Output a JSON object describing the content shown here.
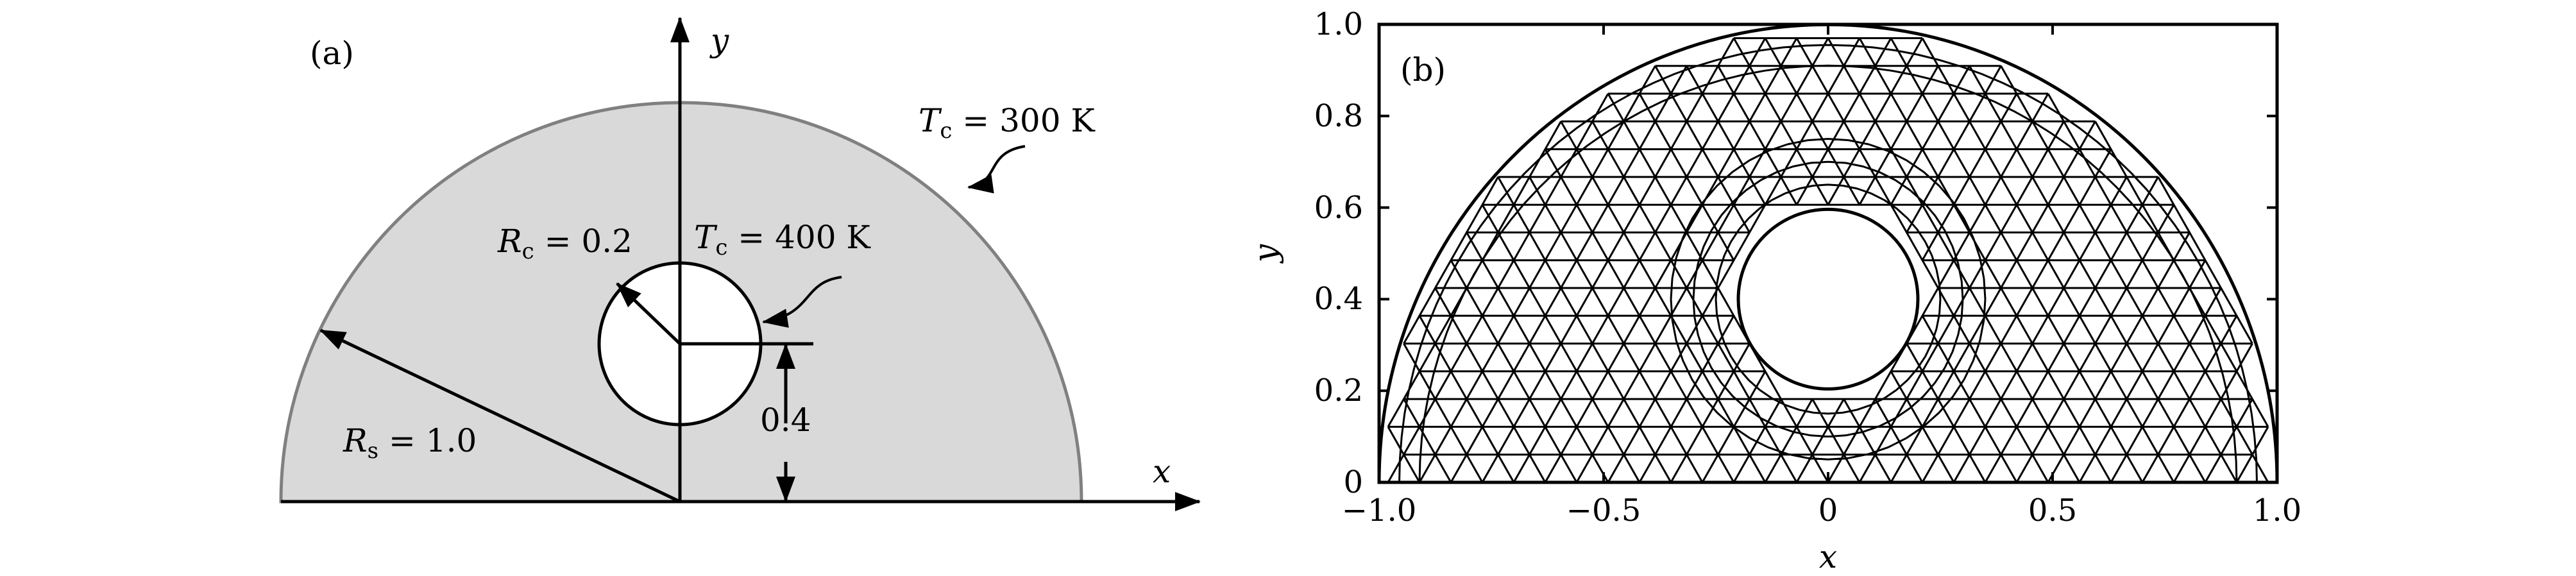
{
  "panel_a": {
    "label": "(a)",
    "axis_x": "x",
    "axis_y": "y",
    "outer_temp": {
      "symbol": "T",
      "sub": "c",
      "text": " = 300 K"
    },
    "inner_temp": {
      "symbol": "T",
      "sub": "c",
      "text": " = 400 K"
    },
    "inner_radius": {
      "symbol": "R",
      "sub": "c",
      "text": " = 0.2"
    },
    "outer_radius": {
      "symbol": "R",
      "sub": "s",
      "text": " = 1.0"
    },
    "offset": "0.4",
    "colors": {
      "fill": "#d9d9d9",
      "outline": "#808080",
      "hole": "#ffffff"
    }
  },
  "panel_b": {
    "label": "(b)",
    "xlabel": "x",
    "ylabel": "y",
    "xlim": [
      -1.0,
      1.0
    ],
    "ylim": [
      0.0,
      1.0
    ],
    "xticks": [
      "−1.0",
      "−0.5",
      "0",
      "0.5",
      "1.0"
    ],
    "xtick_values": [
      -1.0,
      -0.5,
      0,
      0.5,
      1.0
    ],
    "yticks": [
      "0",
      "0.2",
      "0.4",
      "0.6",
      "0.8",
      "1.0"
    ],
    "ytick_values": [
      0,
      0.2,
      0.4,
      0.6,
      0.8,
      1.0
    ],
    "domain": {
      "outer_radius": 1.0,
      "hole_center": [
        0,
        0.4
      ],
      "hole_radius": 0.2
    }
  }
}
